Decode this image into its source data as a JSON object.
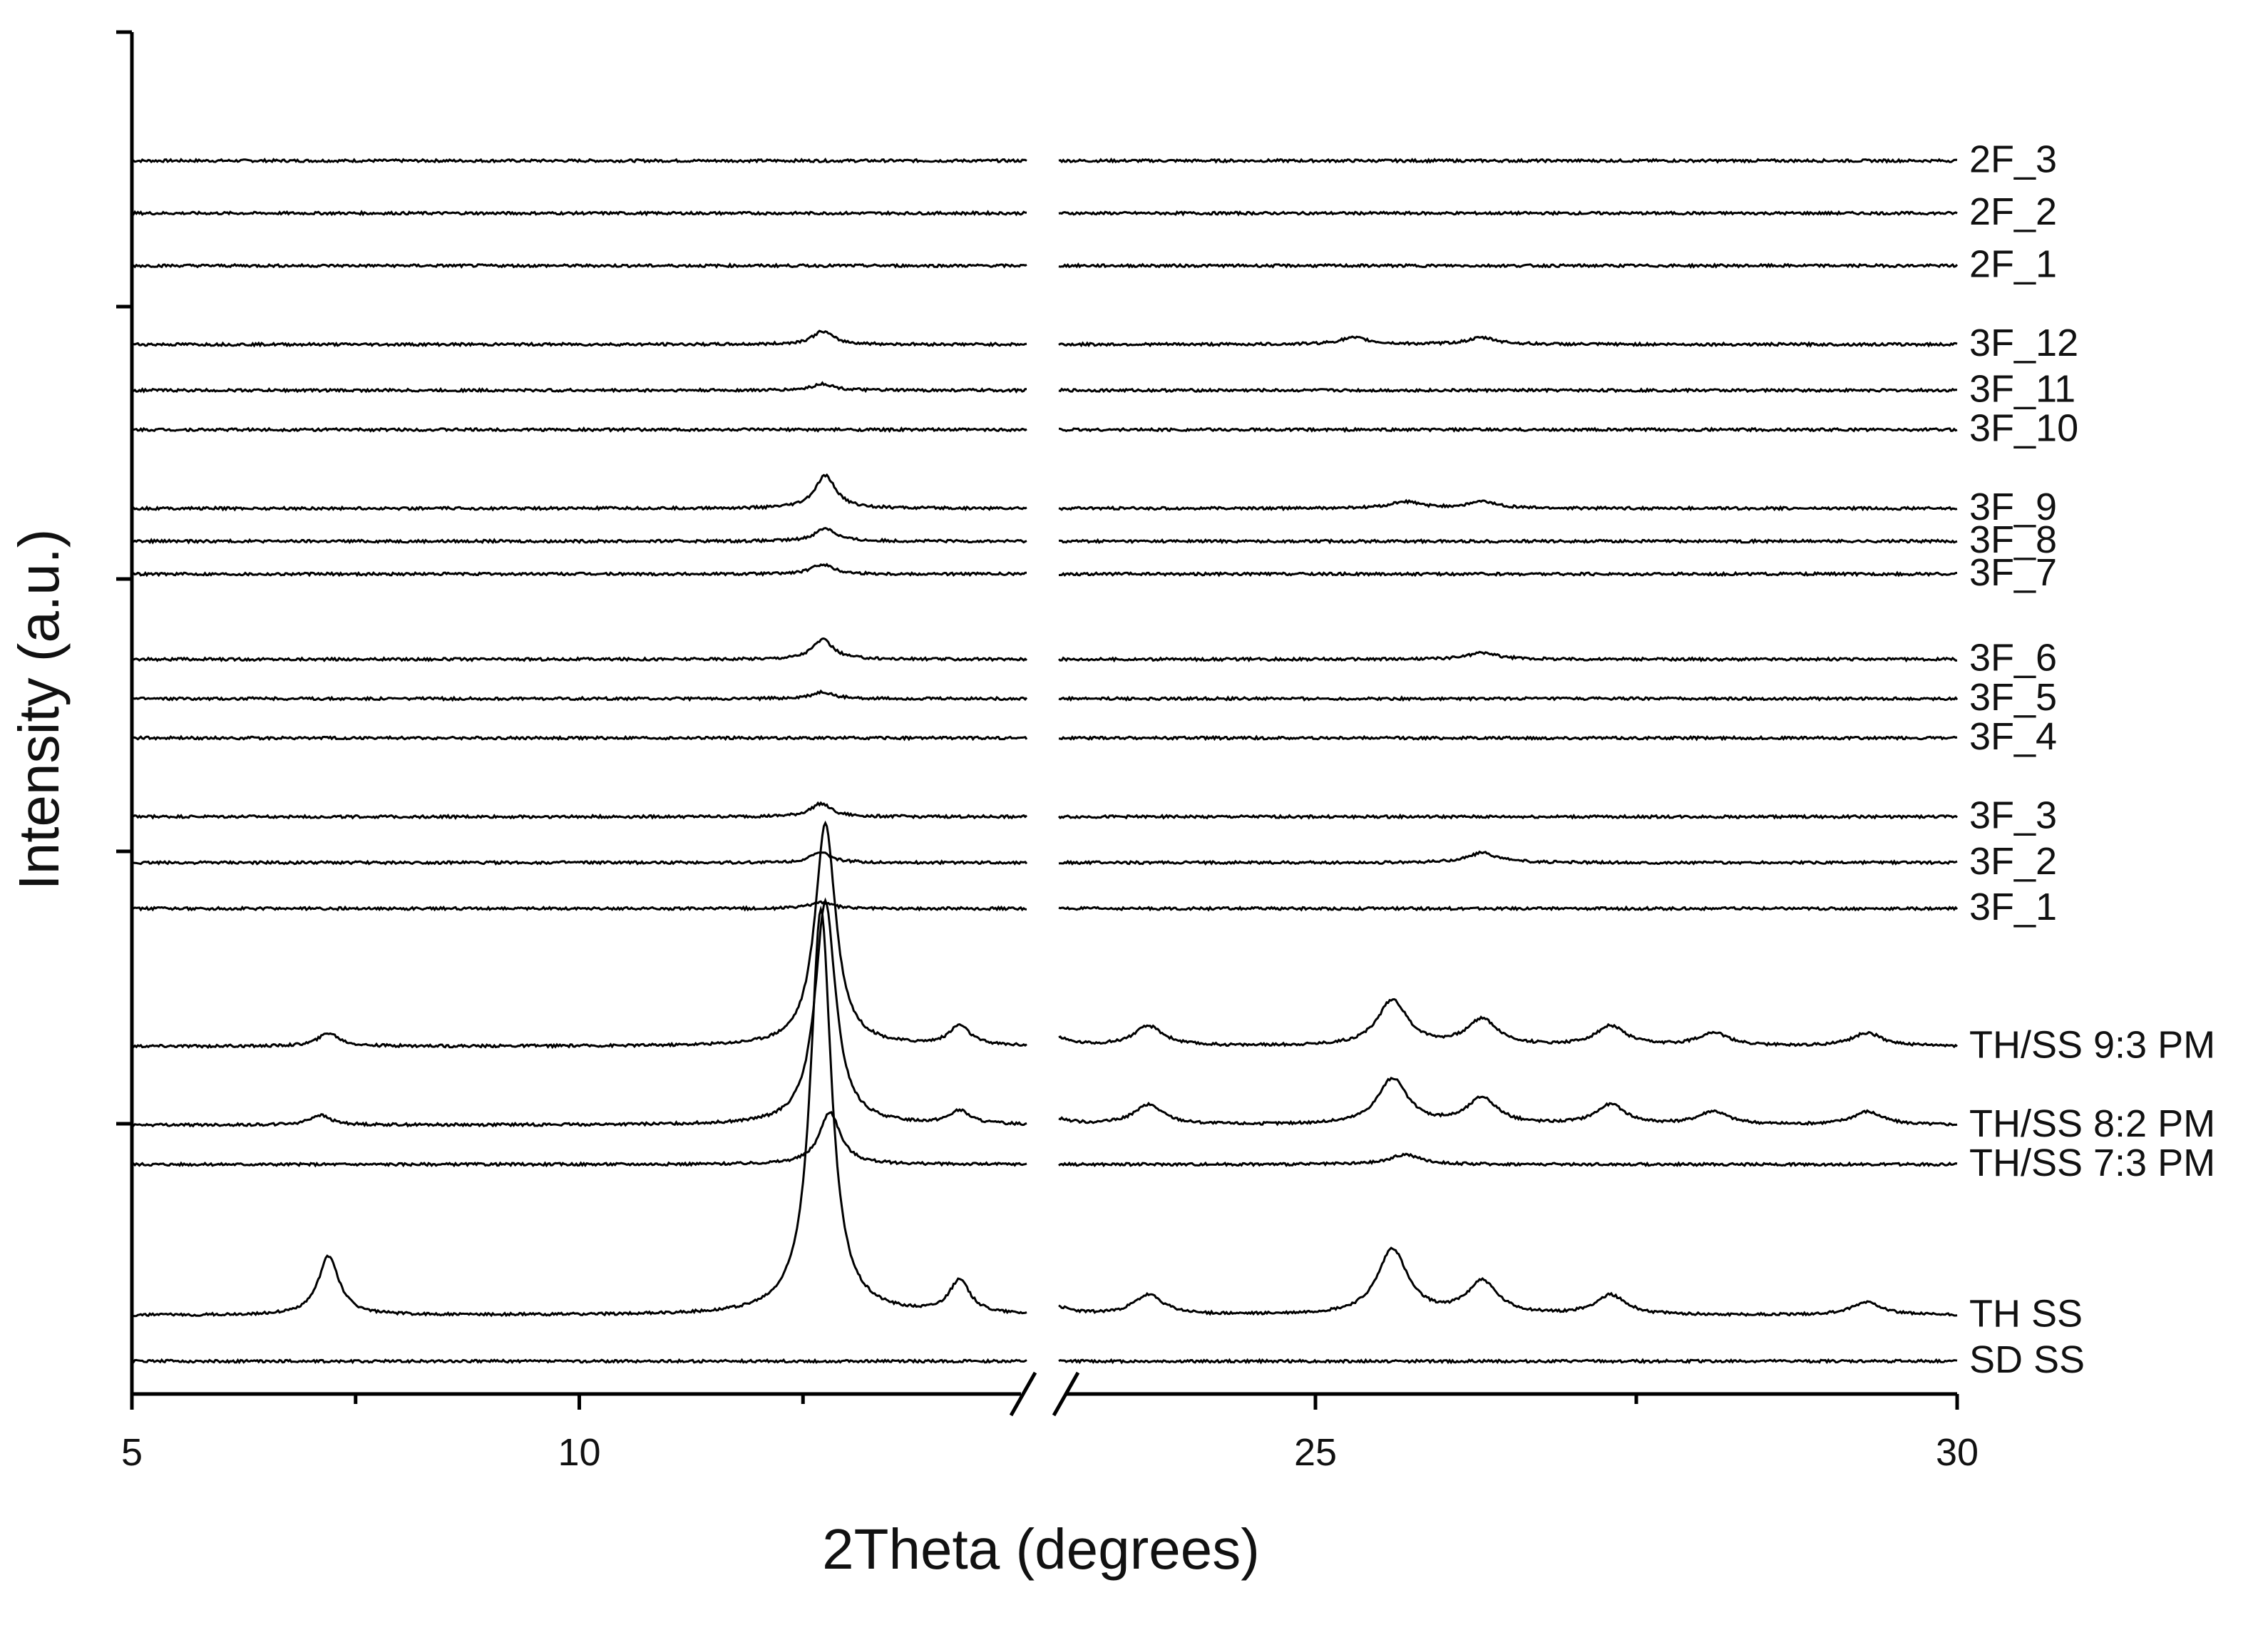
{
  "chart_data": {
    "type": "line",
    "title": "",
    "xlabel": "2Theta (degrees)",
    "ylabel": "Intensity (a.u.)",
    "x_axis_break": {
      "from": 15,
      "to": 23
    },
    "xlim": [
      5,
      30
    ],
    "x_ticks": [
      5,
      10,
      25,
      30
    ],
    "x_tick_labels": [
      "5",
      "10",
      "25",
      "30"
    ],
    "y_ticks_labeled": false,
    "grid": false,
    "legend": "none",
    "series": [
      {
        "name": "2F_3",
        "offset": 1.88,
        "peaks": []
      },
      {
        "name": "2F_2",
        "offset": 1.8,
        "peaks": []
      },
      {
        "name": "2F_1",
        "offset": 1.72,
        "peaks": []
      },
      {
        "name": "3F_12",
        "offset": 1.6,
        "peaks": [
          [
            12.72,
            0.02
          ],
          [
            25.3,
            0.01
          ],
          [
            26.3,
            0.01
          ]
        ]
      },
      {
        "name": "3F_11",
        "offset": 1.53,
        "peaks": [
          [
            12.72,
            0.01
          ]
        ]
      },
      {
        "name": "3F_10",
        "offset": 1.47,
        "peaks": []
      },
      {
        "name": "3F_9",
        "offset": 1.35,
        "peaks": [
          [
            12.75,
            0.05
          ],
          [
            25.7,
            0.01
          ],
          [
            26.3,
            0.01
          ]
        ]
      },
      {
        "name": "3F_8",
        "offset": 1.3,
        "peaks": [
          [
            12.75,
            0.02
          ]
        ]
      },
      {
        "name": "3F_7",
        "offset": 1.25,
        "peaks": [
          [
            12.72,
            0.015
          ]
        ]
      },
      {
        "name": "3F_6",
        "offset": 1.12,
        "peaks": [
          [
            12.72,
            0.03
          ],
          [
            26.3,
            0.01
          ]
        ]
      },
      {
        "name": "3F_5",
        "offset": 1.06,
        "peaks": [
          [
            12.72,
            0.01
          ]
        ]
      },
      {
        "name": "3F_4",
        "offset": 1.0,
        "peaks": []
      },
      {
        "name": "3F_3",
        "offset": 0.88,
        "peaks": [
          [
            12.7,
            0.02
          ]
        ]
      },
      {
        "name": "3F_2",
        "offset": 0.81,
        "peaks": [
          [
            12.7,
            0.015
          ],
          [
            26.3,
            0.015
          ]
        ]
      },
      {
        "name": "3F_1",
        "offset": 0.74,
        "peaks": [
          [
            12.7,
            0.01
          ]
        ]
      },
      {
        "name": "TH/SS 9:3 PM",
        "offset": 0.53,
        "peaks": [
          [
            7.2,
            0.02
          ],
          [
            12.75,
            0.34
          ],
          [
            14.25,
            0.03
          ],
          [
            22.9,
            0.02
          ],
          [
            23.7,
            0.03
          ],
          [
            25.6,
            0.07
          ],
          [
            26.3,
            0.04
          ],
          [
            27.3,
            0.03
          ],
          [
            28.1,
            0.02
          ],
          [
            29.3,
            0.02
          ]
        ]
      },
      {
        "name": "TH/SS 8:2 PM",
        "offset": 0.41,
        "peaks": [
          [
            7.1,
            0.015
          ],
          [
            12.75,
            0.34
          ],
          [
            14.25,
            0.02
          ],
          [
            22.9,
            0.015
          ],
          [
            23.7,
            0.03
          ],
          [
            25.6,
            0.07
          ],
          [
            26.3,
            0.04
          ],
          [
            27.3,
            0.03
          ],
          [
            28.1,
            0.02
          ],
          [
            29.3,
            0.02
          ]
        ]
      },
      {
        "name": "TH/SS 7:3 PM",
        "offset": 0.35,
        "peaks": [
          [
            12.8,
            0.08
          ],
          [
            25.7,
            0.015
          ]
        ]
      },
      {
        "name": "TH SS",
        "offset": 0.12,
        "peaks": [
          [
            7.2,
            0.09
          ],
          [
            12.7,
            0.62
          ],
          [
            14.25,
            0.05
          ],
          [
            22.9,
            0.02
          ],
          [
            23.7,
            0.03
          ],
          [
            25.6,
            0.1
          ],
          [
            26.3,
            0.05
          ],
          [
            27.3,
            0.03
          ],
          [
            29.3,
            0.02
          ]
        ]
      },
      {
        "name": "SD SS",
        "offset": 0.05,
        "peaks": []
      }
    ]
  }
}
